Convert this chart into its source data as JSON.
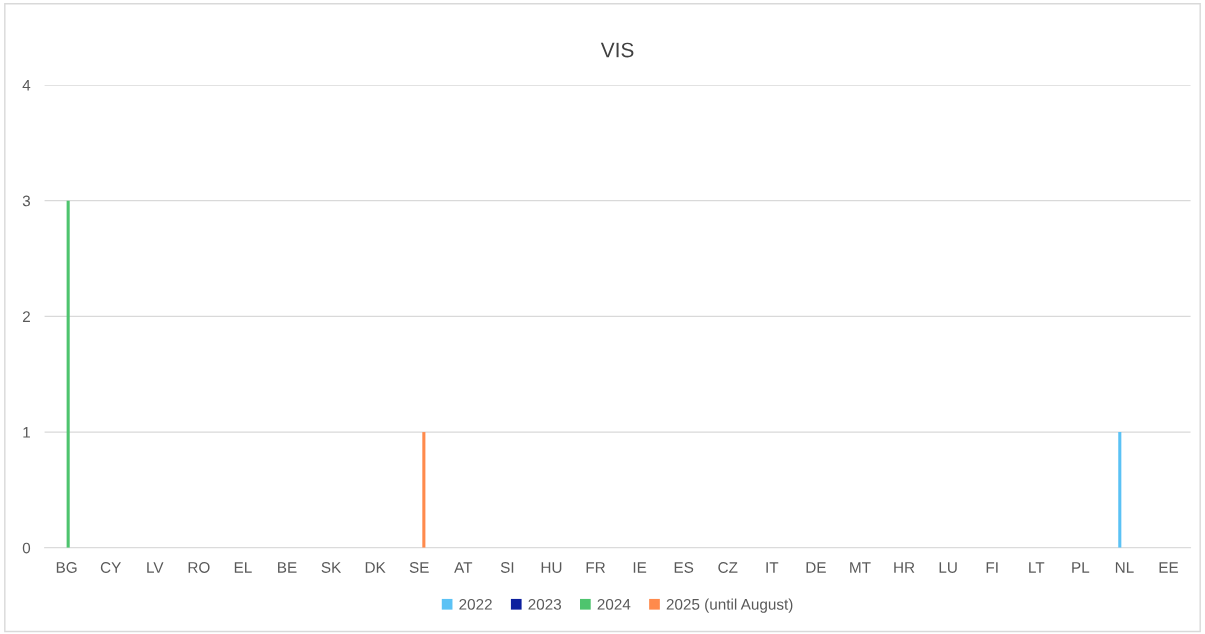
{
  "chart_data": {
    "type": "bar",
    "title": "VIS",
    "categories": [
      "BG",
      "CY",
      "LV",
      "RO",
      "EL",
      "BE",
      "SK",
      "DK",
      "SE",
      "AT",
      "SI",
      "HU",
      "FR",
      "IE",
      "ES",
      "CZ",
      "IT",
      "DE",
      "MT",
      "HR",
      "LU",
      "FI",
      "LT",
      "PL",
      "NL",
      "EE"
    ],
    "series": [
      {
        "name": "2022",
        "color": "#5bc2f5",
        "values": [
          0,
          0,
          0,
          0,
          0,
          0,
          0,
          0,
          0,
          0,
          0,
          0,
          0,
          0,
          0,
          0,
          0,
          0,
          0,
          0,
          0,
          0,
          0,
          0,
          1,
          0
        ]
      },
      {
        "name": "2023",
        "color": "#0c1f9e",
        "values": [
          0,
          0,
          0,
          0,
          0,
          0,
          0,
          0,
          0,
          0,
          0,
          0,
          0,
          0,
          0,
          0,
          0,
          0,
          0,
          0,
          0,
          0,
          0,
          0,
          0,
          0
        ]
      },
      {
        "name": "2024",
        "color": "#4ec46e",
        "values": [
          3,
          0,
          0,
          0,
          0,
          0,
          0,
          0,
          0,
          0,
          0,
          0,
          0,
          0,
          0,
          0,
          0,
          0,
          0,
          0,
          0,
          0,
          0,
          0,
          0,
          0
        ]
      },
      {
        "name": "2025 (until August)",
        "color": "#ff8a4c",
        "values": [
          0,
          0,
          0,
          0,
          0,
          0,
          0,
          0,
          1,
          0,
          0,
          0,
          0,
          0,
          0,
          0,
          0,
          0,
          0,
          0,
          0,
          0,
          0,
          0,
          0,
          0
        ]
      }
    ],
    "ylim": [
      0,
      4
    ],
    "yticks": [
      0,
      1,
      2,
      3,
      4
    ],
    "grid": "y",
    "legend": "bottom"
  }
}
